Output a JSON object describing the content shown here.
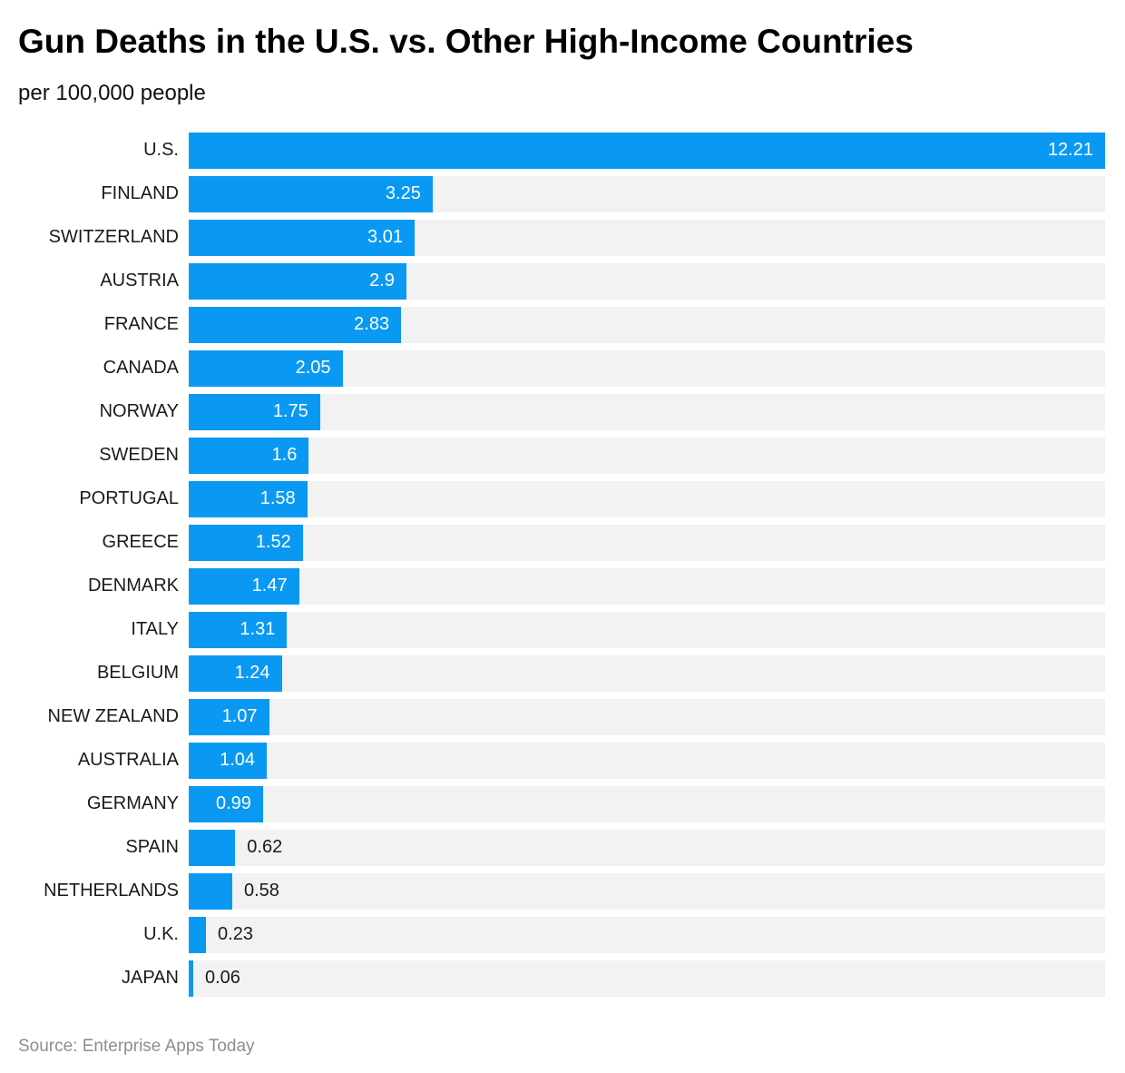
{
  "header": {
    "title": "Gun Deaths in the U.S. vs. Other High-Income Countries",
    "subtitle": "per 100,000 people"
  },
  "footer": {
    "source": "Source: Enterprise Apps Today"
  },
  "colors": {
    "bar": "#0a99f2",
    "track": "#f2f2f2",
    "value_inside": "#ffffff",
    "value_outside": "#1a1a1a",
    "label": "#1a1a1a",
    "source_text": "#8e8e8e",
    "background": "#ffffff"
  },
  "chart_data": {
    "type": "bar",
    "orientation": "horizontal",
    "title": "Gun Deaths in the U.S. vs. Other High-Income Countries",
    "subtitle": "per 100,000 people",
    "xlabel": "",
    "ylabel": "",
    "xlim": [
      0,
      12.21
    ],
    "grid": false,
    "legend": false,
    "categories": [
      "U.S.",
      "FINLAND",
      "SWITZERLAND",
      "AUSTRIA",
      "FRANCE",
      "CANADA",
      "NORWAY",
      "SWEDEN",
      "PORTUGAL",
      "GREECE",
      "DENMARK",
      "ITALY",
      "BELGIUM",
      "NEW ZEALAND",
      "AUSTRALIA",
      "GERMANY",
      "SPAIN",
      "NETHERLANDS",
      "U.K.",
      "JAPAN"
    ],
    "values": [
      12.21,
      3.25,
      3.01,
      2.9,
      2.83,
      2.05,
      1.75,
      1.6,
      1.58,
      1.52,
      1.47,
      1.31,
      1.24,
      1.07,
      1.04,
      0.99,
      0.62,
      0.58,
      0.23,
      0.06
    ],
    "value_labels": [
      "12.21",
      "3.25",
      "3.01",
      "2.9",
      "2.83",
      "2.05",
      "1.75",
      "1.6",
      "1.58",
      "1.52",
      "1.47",
      "1.31",
      "1.24",
      "1.07",
      "1.04",
      "0.99",
      "0.62",
      "0.58",
      "0.23",
      "0.06"
    ],
    "value_label_inside": [
      true,
      true,
      true,
      true,
      true,
      true,
      true,
      true,
      true,
      true,
      true,
      true,
      true,
      true,
      true,
      true,
      false,
      false,
      false,
      false
    ]
  }
}
